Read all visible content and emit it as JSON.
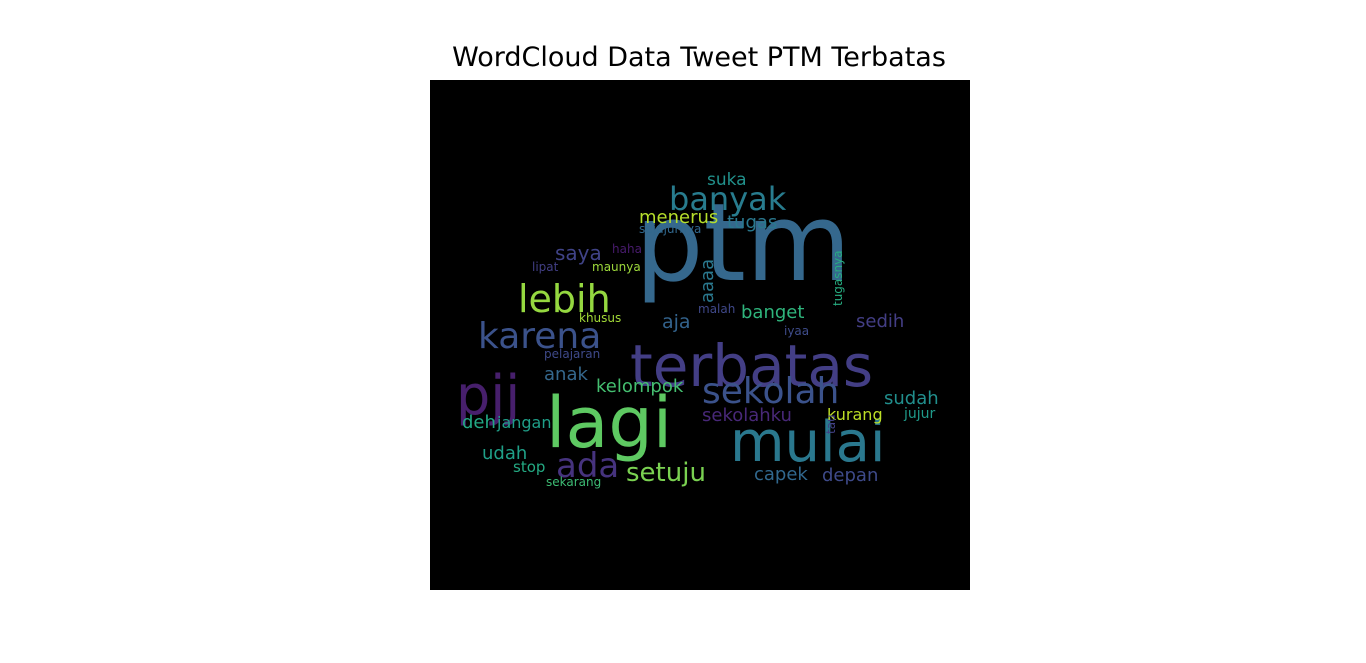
{
  "chart_data": {
    "type": "wordcloud",
    "title": "WordCloud Data Tweet PTM Terbatas",
    "background": "#000000",
    "words": [
      {
        "text": "ptm",
        "color": "#35688d"
      },
      {
        "text": "terbatas",
        "color": "#433e85"
      },
      {
        "text": "lagi",
        "color": "#5ec962"
      },
      {
        "text": "mulai",
        "color": "#2a788e"
      },
      {
        "text": "pjj",
        "color": "#471f6c"
      },
      {
        "text": "karena",
        "color": "#3b528b"
      },
      {
        "text": "lebih",
        "color": "#95d840"
      },
      {
        "text": "banyak",
        "color": "#287c8e"
      },
      {
        "text": "sekolah",
        "color": "#3b528b"
      },
      {
        "text": "ada",
        "color": "#46337e"
      },
      {
        "text": "setuju",
        "color": "#7ad151"
      },
      {
        "text": "menerus",
        "color": "#b5de2b"
      },
      {
        "text": "tugas",
        "color": "#2a788e"
      },
      {
        "text": "suka",
        "color": "#21918c"
      },
      {
        "text": "saya",
        "color": "#404387"
      },
      {
        "text": "sedih",
        "color": "#433e85"
      },
      {
        "text": "banget",
        "color": "#2fb47c"
      },
      {
        "text": "aja",
        "color": "#33638d"
      },
      {
        "text": "aaaa",
        "color": "#2a788e"
      },
      {
        "text": "anak",
        "color": "#35688d"
      },
      {
        "text": "kelompok",
        "color": "#44bf70"
      },
      {
        "text": "sudah",
        "color": "#218f8d"
      },
      {
        "text": "sekolahku",
        "color": "#482878"
      },
      {
        "text": "kurang",
        "color": "#bddf26"
      },
      {
        "text": "jujur",
        "color": "#1f9a8a"
      },
      {
        "text": "deh",
        "color": "#22a884"
      },
      {
        "text": "jangan",
        "color": "#1f9f88"
      },
      {
        "text": "udah",
        "color": "#1fa088"
      },
      {
        "text": "stop",
        "color": "#24aa83"
      },
      {
        "text": "capek",
        "color": "#31688e"
      },
      {
        "text": "depan",
        "color": "#3e4a89"
      },
      {
        "text": "sekarang",
        "color": "#3dbc74"
      },
      {
        "text": "pelajaran",
        "color": "#3e4989"
      },
      {
        "text": "khusus",
        "color": "#a2da37"
      },
      {
        "text": "lipat",
        "color": "#423f85"
      },
      {
        "text": "maunya",
        "color": "#9dd93b"
      },
      {
        "text": "haha",
        "color": "#481b6d"
      },
      {
        "text": "sejujurnya",
        "color": "#31688e"
      },
      {
        "text": "malah",
        "color": "#3f4889"
      },
      {
        "text": "iyaa",
        "color": "#3e4c8a"
      },
      {
        "text": "tau",
        "color": "#424186"
      },
      {
        "text": "tugasnya",
        "color": "#27ad81"
      }
    ]
  }
}
